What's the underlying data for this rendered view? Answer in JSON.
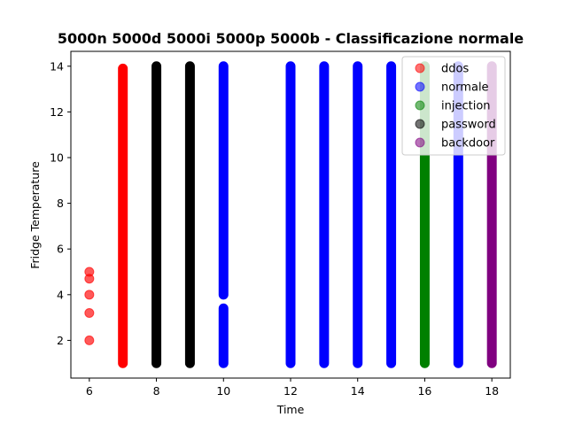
{
  "chart_data": {
    "type": "scatter",
    "title": "5000n 5000d 5000i 5000p 5000b - Classificazione normale",
    "xlabel": "Time",
    "ylabel": "Fridge Temperature",
    "xlim": [
      5.45,
      18.55
    ],
    "ylim": [
      0.35,
      14.65
    ],
    "x_ticks": [
      6,
      8,
      10,
      12,
      14,
      16,
      18
    ],
    "y_ticks": [
      2,
      4,
      6,
      8,
      10,
      12,
      14
    ],
    "grid": false,
    "legend_position": "top-right",
    "series": [
      {
        "name": "ddos",
        "color": "#ff0000",
        "columns": [
          {
            "x": 6,
            "y_values": [
              2.0,
              3.2,
              4.0,
              4.7,
              5.0
            ]
          },
          {
            "x": 7,
            "y_min": 1.0,
            "y_max": 13.9
          }
        ]
      },
      {
        "name": "normale",
        "color": "#0000ff",
        "columns": [
          {
            "x": 10,
            "y_min": 1.0,
            "y_max": 14.0,
            "gaps": [
              [
                3.4,
                4.0
              ]
            ]
          },
          {
            "x": 12,
            "y_min": 1.0,
            "y_max": 14.0
          },
          {
            "x": 13,
            "y_min": 1.0,
            "y_max": 14.0
          },
          {
            "x": 14,
            "y_min": 1.0,
            "y_max": 14.0
          },
          {
            "x": 15,
            "y_min": 1.0,
            "y_max": 14.0
          },
          {
            "x": 17,
            "y_min": 1.0,
            "y_max": 14.0
          }
        ]
      },
      {
        "name": "injection",
        "color": "#008000",
        "columns": [
          {
            "x": 16,
            "y_min": 1.0,
            "y_max": 14.0
          }
        ]
      },
      {
        "name": "password",
        "color": "#000000",
        "columns": [
          {
            "x": 8,
            "y_min": 1.0,
            "y_max": 14.0
          },
          {
            "x": 9,
            "y_min": 1.0,
            "y_max": 14.0
          }
        ]
      },
      {
        "name": "backdoor",
        "color": "#800080",
        "columns": [
          {
            "x": 18,
            "y_min": 1.0,
            "y_max": 14.0
          }
        ]
      }
    ]
  }
}
